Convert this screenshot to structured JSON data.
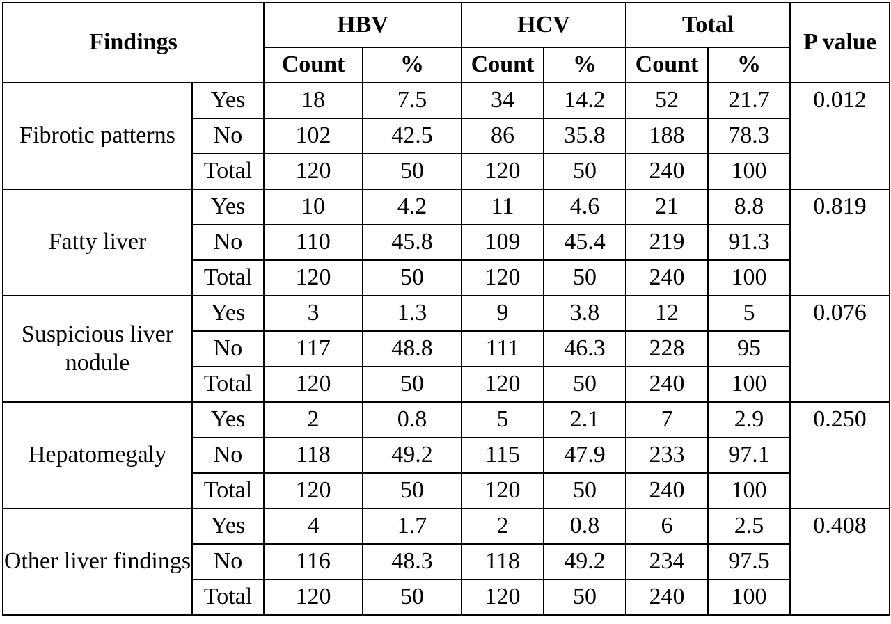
{
  "header": {
    "findings": "Findings",
    "groups": [
      "HBV",
      "HCV",
      "Total"
    ],
    "count": "Count",
    "percent": "%",
    "p_value": "P value"
  },
  "row_labels": {
    "yes": "Yes",
    "no": "No",
    "total": "Total"
  },
  "findings": [
    {
      "name": "Fibrotic patterns",
      "p": "0.012",
      "rows": [
        [
          "18",
          "7.5",
          "34",
          "14.2",
          "52",
          "21.7"
        ],
        [
          "102",
          "42.5",
          "86",
          "35.8",
          "188",
          "78.3"
        ],
        [
          "120",
          "50",
          "120",
          "50",
          "240",
          "100"
        ]
      ]
    },
    {
      "name": "Fatty liver",
      "p": "0.819",
      "rows": [
        [
          "10",
          "4.2",
          "11",
          "4.6",
          "21",
          "8.8"
        ],
        [
          "110",
          "45.8",
          "109",
          "45.4",
          "219",
          "91.3"
        ],
        [
          "120",
          "50",
          "120",
          "50",
          "240",
          "100"
        ]
      ]
    },
    {
      "name": "Suspicious liver nodule",
      "p": "0.076",
      "rows": [
        [
          "3",
          "1.3",
          "9",
          "3.8",
          "12",
          "5"
        ],
        [
          "117",
          "48.8",
          "111",
          "46.3",
          "228",
          "95"
        ],
        [
          "120",
          "50",
          "120",
          "50",
          "240",
          "100"
        ]
      ]
    },
    {
      "name": "Hepatomegaly",
      "p": "0.250",
      "rows": [
        [
          "2",
          "0.8",
          "5",
          "2.1",
          "7",
          "2.9"
        ],
        [
          "118",
          "49.2",
          "115",
          "47.9",
          "233",
          "97.1"
        ],
        [
          "120",
          "50",
          "120",
          "50",
          "240",
          "100"
        ]
      ]
    },
    {
      "name": "Other liver findings",
      "p": "0.408",
      "rows": [
        [
          "4",
          "1.7",
          "2",
          "0.8",
          "6",
          "2.5"
        ],
        [
          "116",
          "48.3",
          "118",
          "49.2",
          "234",
          "97.5"
        ],
        [
          "120",
          "50",
          "120",
          "50",
          "240",
          "100"
        ]
      ]
    }
  ]
}
